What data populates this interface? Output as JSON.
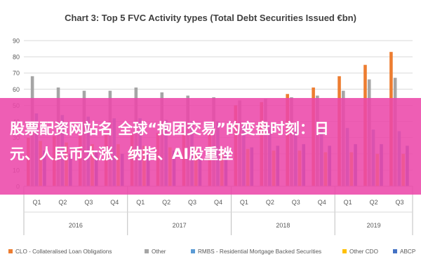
{
  "chart_data": {
    "type": "bar",
    "title": "Chart 3: Top 5 FVC Activity types (Total Debt Securities Issued €bn)",
    "xlabel": "",
    "ylabel": "",
    "ylim": [
      0,
      90
    ],
    "yticks": [
      0,
      10,
      20,
      30,
      40,
      50,
      60,
      70,
      80,
      90
    ],
    "grid": true,
    "legend_position": "bottom",
    "categories": [
      "Q1",
      "Q2",
      "Q3",
      "Q4",
      "Q1",
      "Q2",
      "Q3",
      "Q4",
      "Q1",
      "Q2",
      "Q3",
      "Q4",
      "Q1",
      "Q2",
      "Q3"
    ],
    "year_groups": [
      {
        "label": "2016",
        "count": 4
      },
      {
        "label": "2017",
        "count": 4
      },
      {
        "label": "2018",
        "count": 4
      },
      {
        "label": "2019",
        "count": 3
      }
    ],
    "series": [
      {
        "name": "CLO - Collateralised Loan Obligations",
        "color": "#ED7D31",
        "values": [
          30,
          31,
          31,
          32,
          32,
          33,
          34,
          33,
          50,
          52,
          57,
          61,
          68,
          75,
          83
        ]
      },
      {
        "name": "Other",
        "color": "#A5A5A5",
        "values": [
          68,
          61,
          59,
          59,
          61,
          58,
          56,
          55,
          53,
          54,
          55,
          56,
          59,
          66,
          67
        ]
      },
      {
        "name": "RMBS - Residential Mortgage Backed Securities",
        "color": "#5B9BD5",
        "values": [
          45,
          44,
          43,
          42,
          42,
          41,
          40,
          40,
          38,
          38,
          37,
          36,
          36,
          35,
          34
        ]
      },
      {
        "name": "Other CDO",
        "color": "#FFC000",
        "values": [
          28,
          27,
          26,
          26,
          25,
          24,
          24,
          23,
          23,
          22,
          22,
          21,
          21,
          20,
          20
        ]
      },
      {
        "name": "ABCP",
        "color": "#4472C4",
        "values": [
          22,
          20,
          21,
          20,
          21,
          22,
          21,
          22,
          24,
          25,
          26,
          25,
          26,
          26,
          25
        ]
      }
    ]
  },
  "overlay": {
    "text": "股票配资网站名 全球“抱团交易”的变盘时刻：日\n元、人民币大涨、纳指、AI股重挫"
  },
  "colors": {
    "banner": "#EC48AA",
    "grid": "#D9D9D9",
    "axis_text": "#595959"
  }
}
